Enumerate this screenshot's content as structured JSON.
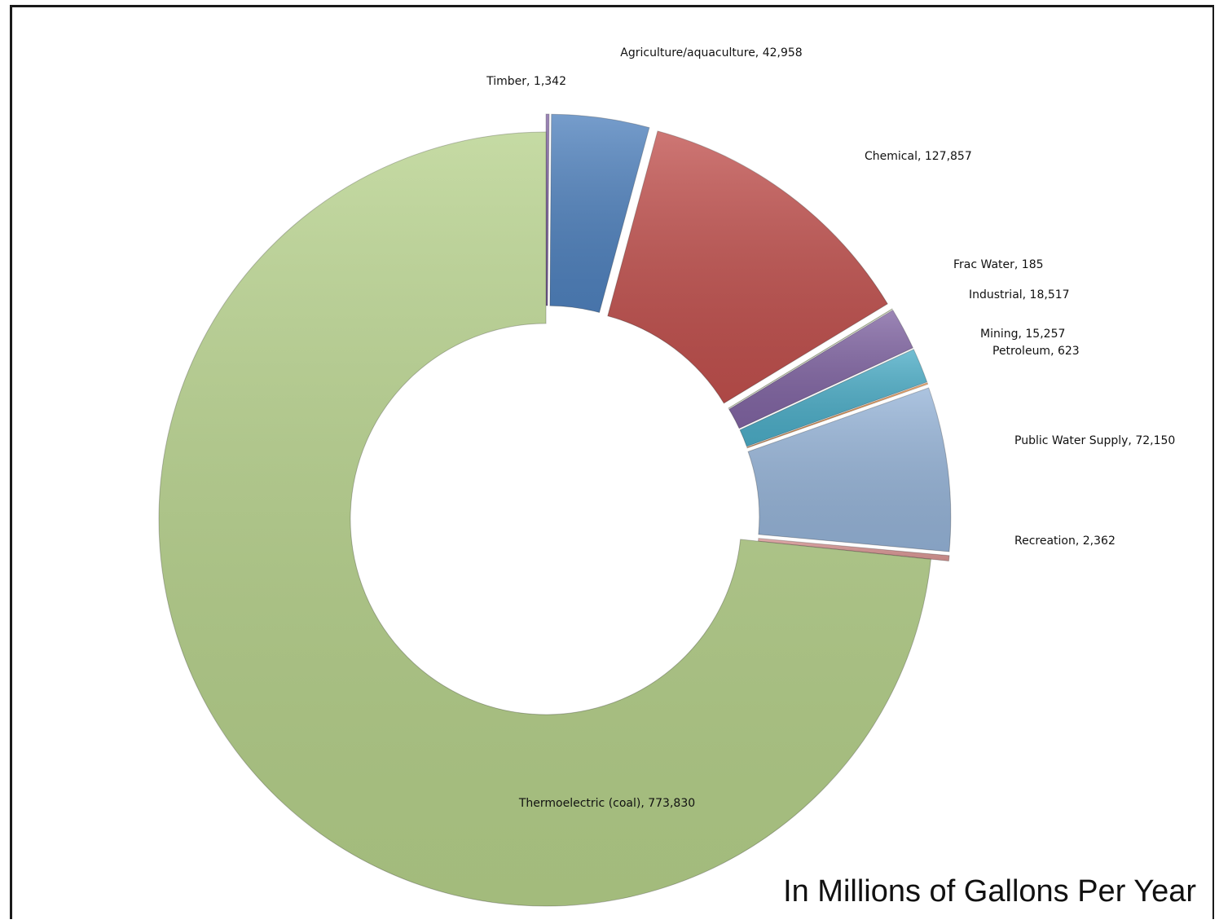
{
  "chart_data": {
    "type": "pie",
    "variant": "doughnut",
    "categories": [
      "Timber",
      "Agriculture/aquaculture",
      "Chemical",
      "Frac Water",
      "Industrial",
      "Mining",
      "Petroleum",
      "Public Water Supply",
      "Recreation",
      "Thermoelectric (coal)"
    ],
    "values": [
      1342,
      42958,
      127857,
      185,
      18517,
      15257,
      623,
      72150,
      2362,
      773830
    ],
    "labels": [
      "Timber, 1,342",
      "Agriculture/aquaculture, 42,958",
      "Chemical, 127,857",
      "Frac Water, 185",
      "Industrial, 18,517",
      "Mining, 15,257",
      "Petroleum, 623",
      "Public Water Supply, 72,150",
      "Recreation, 2,362",
      "Thermoelectric (coal), 773,830"
    ],
    "colors": [
      "#8064a2",
      "#4f81bd",
      "#c0504d",
      "#9bbb59",
      "#8064a2",
      "#4bacc6",
      "#f79646",
      "#95b3d7",
      "#d99694",
      "#b5d08a"
    ],
    "title": "",
    "legend": "none"
  },
  "caption": "In Millions of Gallons Per Year"
}
